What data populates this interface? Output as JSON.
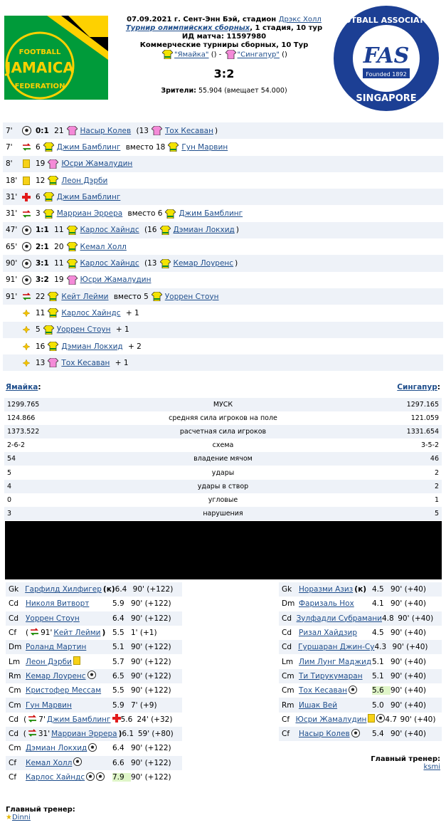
{
  "match": {
    "line1": "07.09.2021 г. Сент-Энн Бэй, стадион ",
    "stadium": "Дрэкс Холл",
    "tournament": "Турнир олимпийских сборных",
    "stage": ", 1 стадия, 10 тур",
    "match_id": "ИД матча: 11597980",
    "commercial": "Коммерческие турниры сборных, 10 Тур",
    "team1_quoted": "\"Ямайка\"",
    "team2_quoted": "\"Сингапур\"",
    "paren": "()",
    "dash": "-",
    "score": "3:2",
    "attendance_label": "Зрители:",
    "attendance_value": "55.904 (вмещает 54.000)",
    "logo_left_text1": "FOOTBALL",
    "logo_left_text2": "JAMAICA",
    "logo_left_text3": "FEDERATION",
    "logo_right_text1": "FOOTBALL ASSOCIATION",
    "logo_right_text2": "SINGAPORE",
    "logo_right_text3": "Founded 1892",
    "logo_right_text4": "FAS"
  },
  "events": [
    {
      "min": "7'",
      "type": "goal",
      "score": "0:1",
      "num": "21",
      "shirt": "pink",
      "player": "Насыр Колев",
      "extra": "(13",
      "shirt2": "pink",
      "player2": "Тох Кесаван",
      "tail": ")"
    },
    {
      "min": "7'",
      "type": "sub",
      "score": "",
      "num": "6",
      "shirt": "yellow",
      "player": "Джим Бамблинг",
      "extra": "вместо 18",
      "shirt2": "yellow",
      "player2": "Гун Марвин",
      "tail": ""
    },
    {
      "min": "8'",
      "type": "yellow",
      "score": "",
      "num": "19",
      "shirt": "pink",
      "player": "Юсри Жамалудин",
      "extra": "",
      "shirt2": "",
      "player2": "",
      "tail": ""
    },
    {
      "min": "18'",
      "type": "yellow",
      "score": "",
      "num": "12",
      "shirt": "yellow",
      "player": "Леон Дэрби",
      "extra": "",
      "shirt2": "",
      "player2": "",
      "tail": ""
    },
    {
      "min": "31'",
      "type": "injury",
      "score": "",
      "num": "6",
      "shirt": "yellow",
      "player": "Джим Бамблинг",
      "extra": "",
      "shirt2": "",
      "player2": "",
      "tail": ""
    },
    {
      "min": "31'",
      "type": "sub",
      "score": "",
      "num": "3",
      "shirt": "yellow",
      "player": "Марриан Эррера",
      "extra": "вместо 6",
      "shirt2": "yellow",
      "player2": "Джим Бамблинг",
      "tail": ""
    },
    {
      "min": "47'",
      "type": "goal",
      "score": "1:1",
      "num": "11",
      "shirt": "yellow",
      "player": "Карлос Хайндс",
      "extra": "(16",
      "shirt2": "yellow",
      "player2": "Дэмиан Локхид",
      "tail": ")"
    },
    {
      "min": "65'",
      "type": "goal",
      "score": "2:1",
      "num": "20",
      "shirt": "yellow",
      "player": "Кемал Холл",
      "extra": "",
      "shirt2": "",
      "player2": "",
      "tail": ""
    },
    {
      "min": "90'",
      "type": "goal",
      "score": "3:1",
      "num": "11",
      "shirt": "yellow",
      "player": "Карлос Хайндс",
      "extra": "(13",
      "shirt2": "yellow",
      "player2": "Кемар Лоуренс",
      "tail": ")"
    },
    {
      "min": "91'",
      "type": "goal",
      "score": "3:2",
      "num": "19",
      "shirt": "pink",
      "player": "Юсри Жамалудин",
      "extra": "",
      "shirt2": "",
      "player2": "",
      "tail": ""
    },
    {
      "min": "91'",
      "type": "sub",
      "score": "",
      "num": "22",
      "shirt": "yellow",
      "player": "Кейт Лейми",
      "extra": "вместо 5",
      "shirt2": "yellow",
      "player2": "Уоррен Стоун",
      "tail": ""
    },
    {
      "min": "",
      "type": "plus",
      "score": "",
      "num": "11",
      "shirt": "yellow",
      "player": "Карлос Хайндс",
      "extra": "+ 1",
      "shirt2": "",
      "player2": "",
      "tail": ""
    },
    {
      "min": "",
      "type": "plus",
      "score": "",
      "num": "5",
      "shirt": "yellow",
      "player": "Уоррен Стоун",
      "extra": "+ 1",
      "shirt2": "",
      "player2": "",
      "tail": ""
    },
    {
      "min": "",
      "type": "plus",
      "score": "",
      "num": "16",
      "shirt": "yellow",
      "player": "Дэмиан Локхид",
      "extra": "+ 2",
      "shirt2": "",
      "player2": "",
      "tail": ""
    },
    {
      "min": "",
      "type": "plus",
      "score": "",
      "num": "13",
      "shirt": "pink",
      "player": "Тох Кесаван",
      "extra": "+ 1",
      "shirt2": "",
      "player2": "",
      "tail": ""
    }
  ],
  "teams": {
    "home": "Ямайка",
    "away": "Сингапур",
    "colon": ":"
  },
  "stats": [
    {
      "l": "1299.765",
      "c": "МУСК",
      "r": "1297.165"
    },
    {
      "l": "124.866",
      "c": "средняя сила игроков на поле",
      "r": "121.059"
    },
    {
      "l": "1373.522",
      "c": "расчетная сила игроков",
      "r": "1331.654"
    },
    {
      "l": "2-6-2",
      "c": "схема",
      "r": "3-5-2"
    },
    {
      "l": "54",
      "c": "владение мячом",
      "r": "46"
    },
    {
      "l": "5",
      "c": "удары",
      "r": "2"
    },
    {
      "l": "4",
      "c": "удары в створ",
      "r": "2"
    },
    {
      "l": "0",
      "c": "угловые",
      "r": "1"
    },
    {
      "l": "3",
      "c": "нарушения",
      "r": "5"
    }
  ],
  "lineup_home": [
    {
      "pos": "Gk",
      "name": "Гарфилд Хилфигер",
      "pre": "",
      "post": "(к)",
      "icons": "",
      "rating": "6.4",
      "time": "90' (+122)",
      "hl": false
    },
    {
      "pos": "Cd",
      "name": "Николя Витворт",
      "pre": "",
      "post": "",
      "icons": "",
      "rating": "5.9",
      "time": "90' (+122)",
      "hl": false
    },
    {
      "pos": "Cd",
      "name": "Уоррен Стоун",
      "pre": "",
      "post": "",
      "icons": "",
      "rating": "6.4",
      "time": "90' (+122)",
      "hl": false
    },
    {
      "pos": "Cf",
      "name": "Кейт Лейми",
      "pre": "( 91'",
      "post": ")",
      "icons": "sub",
      "rating": "5.5",
      "time": "1' (+1)",
      "hl": false
    },
    {
      "pos": "Dm",
      "name": "Роланд Мартин",
      "pre": "",
      "post": "",
      "icons": "",
      "rating": "5.1",
      "time": "90' (+122)",
      "hl": false
    },
    {
      "pos": "Lm",
      "name": "Леон Дэрби",
      "pre": "",
      "post": "",
      "icons": "yellow",
      "rating": "5.7",
      "time": "90' (+122)",
      "hl": false
    },
    {
      "pos": "Rm",
      "name": "Кемар Лоуренс",
      "pre": "",
      "post": "",
      "icons": "ball",
      "rating": "6.5",
      "time": "90' (+122)",
      "hl": false
    },
    {
      "pos": "Cm",
      "name": "Кристофер Мессам",
      "pre": "",
      "post": "",
      "icons": "",
      "rating": "5.5",
      "time": "90' (+122)",
      "hl": false
    },
    {
      "pos": "Cm",
      "name": "Гун Марвин",
      "pre": "",
      "post": "",
      "icons": "",
      "rating": "5.9",
      "time": "7' (+9)",
      "hl": false
    },
    {
      "pos": "Cd",
      "name": "Джим Бамблинг",
      "pre": "( 7'",
      "post": "",
      "icons": "cross",
      "rating": "5.6",
      "time": "24' (+32)",
      "hl": false
    },
    {
      "pos": "Cd",
      "name": "Марриан Эррера",
      "pre": "( 31'",
      "post": ")",
      "icons": "",
      "rating": "6.1",
      "time": "59' (+80)",
      "hl": false
    },
    {
      "pos": "Cm",
      "name": "Дэмиан Локхид",
      "pre": "",
      "post": "",
      "icons": "ball",
      "rating": "6.4",
      "time": "90' (+122)",
      "hl": false
    },
    {
      "pos": "Cf",
      "name": "Кемал Холл",
      "pre": "",
      "post": "",
      "icons": "ball",
      "rating": "6.6",
      "time": "90' (+122)",
      "hl": false
    },
    {
      "pos": "Cf",
      "name": "Карлос Хайндс",
      "pre": "",
      "post": "",
      "icons": "ball2",
      "rating": "7.9",
      "time": "90' (+122)",
      "hl": true
    }
  ],
  "lineup_away": [
    {
      "pos": "Gk",
      "name": "Норазми Азиз",
      "pre": "",
      "post": "(к)",
      "icons": "",
      "rating": "4.5",
      "time": "90' (+40)",
      "hl": false
    },
    {
      "pos": "Dm",
      "name": "Фаризаль Нох",
      "pre": "",
      "post": "",
      "icons": "",
      "rating": "4.1",
      "time": "90' (+40)",
      "hl": false
    },
    {
      "pos": "Cd",
      "name": "Зулфадли Субрамани",
      "pre": "",
      "post": "",
      "icons": "",
      "rating": "4.8",
      "time": "90' (+40)",
      "hl": false
    },
    {
      "pos": "Cd",
      "name": "Ризал Хайдзир",
      "pre": "",
      "post": "",
      "icons": "",
      "rating": "4.5",
      "time": "90' (+40)",
      "hl": false
    },
    {
      "pos": "Cd",
      "name": "Гуршаран Джин-Су",
      "pre": "",
      "post": "",
      "icons": "",
      "rating": "4.3",
      "time": "90' (+40)",
      "hl": false
    },
    {
      "pos": "Lm",
      "name": "Лим Лунг Маджид",
      "pre": "",
      "post": "",
      "icons": "",
      "rating": "5.1",
      "time": "90' (+40)",
      "hl": false
    },
    {
      "pos": "Cm",
      "name": "Ти Тирукумаран",
      "pre": "",
      "post": "",
      "icons": "",
      "rating": "5.1",
      "time": "90' (+40)",
      "hl": false
    },
    {
      "pos": "Cm",
      "name": "Тох Кесаван",
      "pre": "",
      "post": "",
      "icons": "ball",
      "rating": "5.6",
      "time": "90' (+40)",
      "hl": true
    },
    {
      "pos": "Rm",
      "name": "Ишак Вей",
      "pre": "",
      "post": "",
      "icons": "",
      "rating": "5.0",
      "time": "90' (+40)",
      "hl": false
    },
    {
      "pos": "Cf",
      "name": "Юсри Жамалудин",
      "pre": "",
      "post": "",
      "icons": "yellowball",
      "rating": "4.7",
      "time": "90' (+40)",
      "hl": false
    },
    {
      "pos": "Cf",
      "name": "Насыр Колев",
      "pre": "",
      "post": "",
      "icons": "ball",
      "rating": "5.4",
      "time": "90' (+40)",
      "hl": false
    }
  ],
  "coach": {
    "label": "Главный тренер:",
    "home": "Dinni",
    "away": "ksmi"
  },
  "colors": {
    "link": "#1f4e8c",
    "row_alt": "#eef2f8",
    "highlight": "#dff5c8",
    "jamaica_green": "#009b3a",
    "jamaica_yellow": "#fed100",
    "singapore_blue": "#1c3f94"
  }
}
